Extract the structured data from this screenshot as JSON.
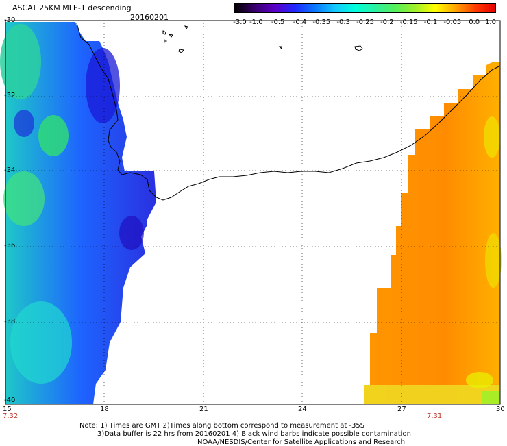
{
  "header": {
    "title": "ASCAT 25KM MLE-1 descending",
    "date": "20160201"
  },
  "colorbar": {
    "labels": [
      "-3.0",
      "-1.0",
      "-0.5",
      "-0.4",
      "-0.35",
      "-0.3",
      "-0.25",
      "-0.2",
      "-0.15",
      "-0.1",
      "-0.05",
      "0.0",
      "1.0"
    ],
    "colors": [
      "#000000",
      "#3a006e",
      "#5a00c8",
      "#1e28ff",
      "#0a78ff",
      "#14c8ff",
      "#00ffdc",
      "#2cf0a0",
      "#55f05a",
      "#a0f028",
      "#ffff00",
      "#ffa500",
      "#ff3c00",
      "#e60000"
    ]
  },
  "map": {
    "lat_labels": [
      "-30",
      "-32",
      "-34",
      "-36",
      "-38",
      "-40"
    ],
    "lon_labels": [
      "15",
      "18",
      "21",
      "24",
      "27",
      "30"
    ],
    "lon_range": [
      15,
      30
    ],
    "lat_range": [
      -30,
      -40
    ],
    "time_labels": {
      "left": "7.32",
      "right": "7.31"
    }
  },
  "footer": {
    "line1": "Note: 1) Times are GMT 2)Times along bottom correspond to measurement at -35S",
    "line2": "3)Data buffer is 22 hrs from 20160201 4) Black wind barbs indicate possible contamination",
    "line3": "NOAA/NESDIS/Center for Satellite Applications and Research"
  }
}
